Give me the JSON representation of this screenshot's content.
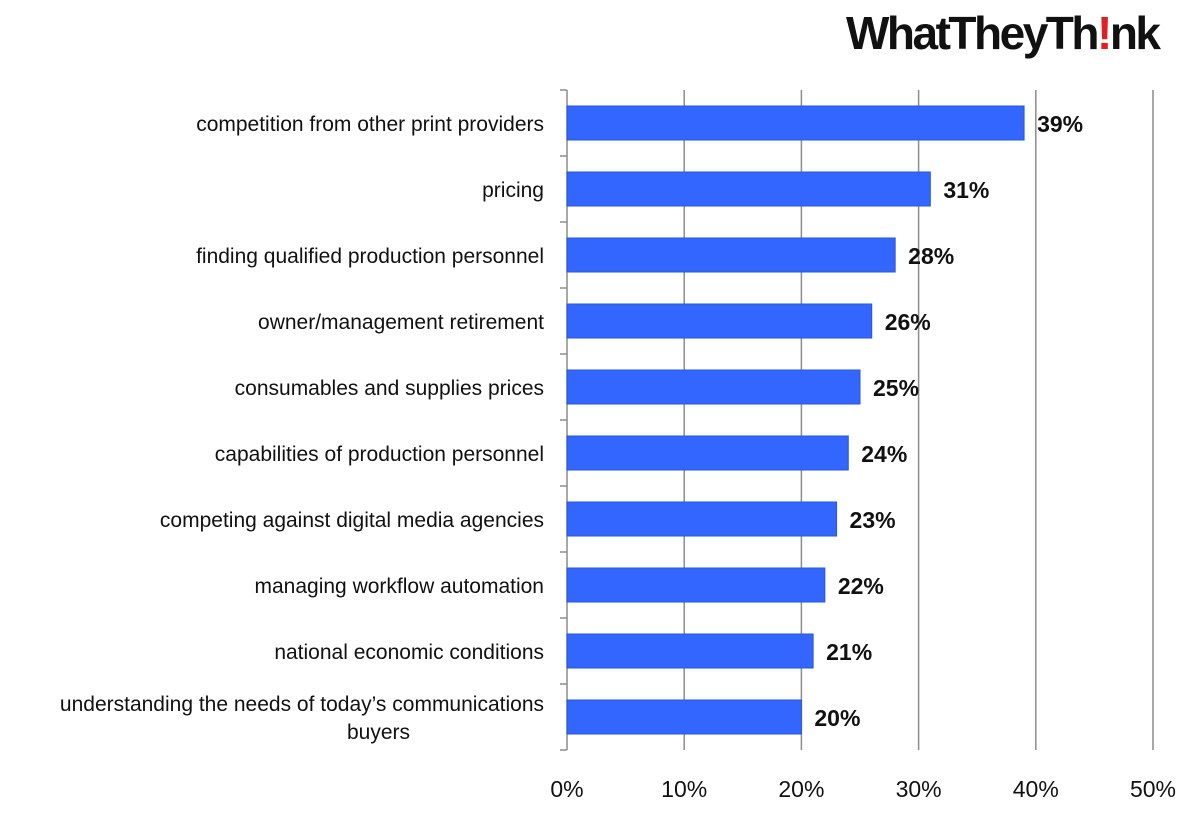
{
  "brand": {
    "logo_text": "WhatTheyThink",
    "accent_color": "#e02020"
  },
  "chart_data": {
    "type": "bar",
    "orientation": "horizontal",
    "categories": [
      "competition from other print providers",
      "pricing",
      "finding qualified production personnel",
      "owner/management retirement",
      "consumables and supplies prices",
      "capabilities of production personnel",
      "competing against digital media agencies",
      "managing workflow automation",
      "national economic conditions",
      "understanding the needs of today’s communications buyers"
    ],
    "category_lines": [
      [
        "competition from other print providers"
      ],
      [
        "pricing"
      ],
      [
        "finding qualified production personnel"
      ],
      [
        "owner/management retirement"
      ],
      [
        "consumables and supplies prices"
      ],
      [
        "capabilities of production personnel"
      ],
      [
        "competing against digital media agencies"
      ],
      [
        "managing workflow automation"
      ],
      [
        "national economic conditions"
      ],
      [
        "understanding the needs of today’s communications",
        "buyers"
      ]
    ],
    "values": [
      39,
      31,
      28,
      26,
      25,
      24,
      23,
      22,
      21,
      20
    ],
    "data_labels": [
      "39%",
      "31%",
      "28%",
      "26%",
      "25%",
      "24%",
      "23%",
      "22%",
      "21%",
      "20%"
    ],
    "x_ticks": [
      "0%",
      "10%",
      "20%",
      "30%",
      "40%",
      "50%"
    ],
    "xlim": [
      0,
      50
    ],
    "grid": true,
    "bar_color": "#3366ff"
  }
}
